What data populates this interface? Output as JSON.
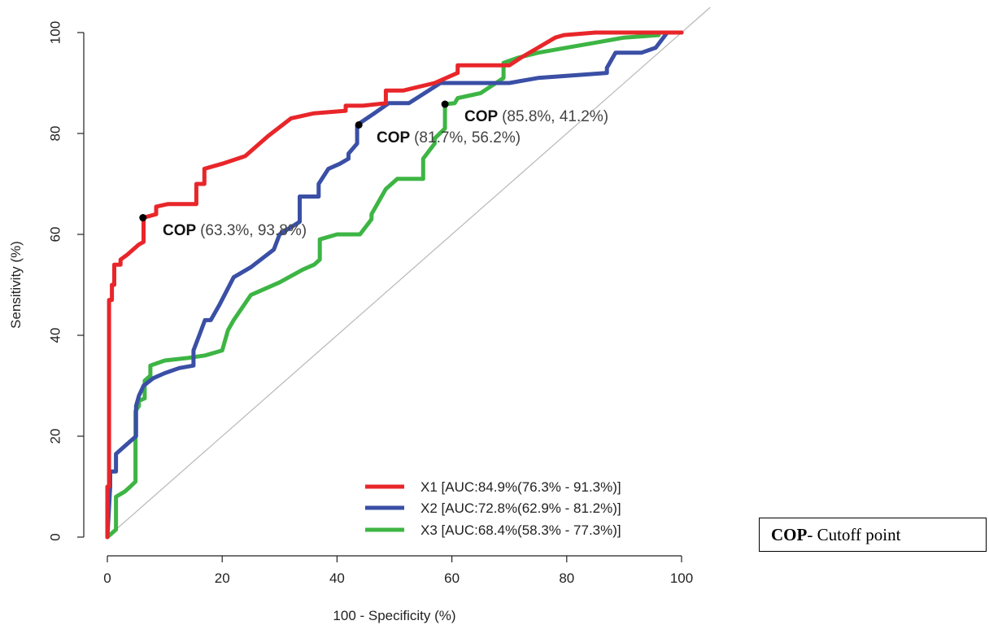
{
  "chart_data": {
    "type": "line",
    "title": "",
    "xlabel": "100 - Specificity (%)",
    "ylabel": "Sensitivity (%)",
    "xlim": [
      0,
      100
    ],
    "ylim": [
      0,
      100
    ],
    "xticks": [
      0,
      20,
      40,
      60,
      80,
      100
    ],
    "yticks": [
      0,
      20,
      40,
      60,
      80,
      100
    ],
    "grid": false,
    "reference_line": "diagonal",
    "legend_position": "bottom-right",
    "series": [
      {
        "name": "X1 [AUC:84.9%(76.3% - 91.3%)]",
        "color": "#e8262a",
        "x": [
          0,
          0,
          0.3,
          0.3,
          0.8,
          0.8,
          1.2,
          1.2,
          2.3,
          2.3,
          3.5,
          5.5,
          6.3,
          6.3,
          8.5,
          8.5,
          10.5,
          15.5,
          15.5,
          16.9,
          16.9,
          20,
          24,
          28,
          32,
          36,
          41.5,
          41.5,
          44.5,
          48.5,
          48.5,
          51.5,
          57,
          61,
          61,
          67,
          70,
          72,
          75,
          78,
          79.5,
          85,
          93,
          100
        ],
        "y": [
          0,
          10,
          10,
          47,
          47,
          50,
          50,
          54,
          54,
          55,
          56,
          58,
          58.5,
          63.3,
          64,
          65.5,
          66,
          66,
          70,
          70,
          73,
          74,
          75.5,
          79.5,
          83,
          84,
          84.5,
          85.5,
          85.5,
          86,
          88.5,
          88.5,
          90,
          92,
          93.5,
          93.5,
          93.5,
          95,
          97,
          99,
          99.5,
          100,
          100,
          100
        ]
      },
      {
        "name": "X2 [AUC:72.8%(62.9% - 81.2%)]",
        "color": "#3a4fa5",
        "x": [
          0,
          0.5,
          0.5,
          1.5,
          1.5,
          3,
          5,
          5,
          5.5,
          6.3,
          8,
          10,
          12.5,
          15,
          15,
          16,
          17,
          18,
          19.5,
          22,
          25,
          29,
          30,
          33.5,
          33.5,
          36.8,
          36.8,
          38.5,
          40.5,
          42,
          42,
          43.5,
          43.5,
          46.5,
          49,
          52.5,
          58,
          62,
          70,
          75,
          87,
          87,
          88.5,
          93,
          95.5,
          97.5,
          100
        ],
        "y": [
          0,
          10,
          13,
          13,
          16.5,
          18,
          20,
          26,
          28,
          30,
          31.5,
          32.5,
          33.5,
          34,
          37,
          40,
          43,
          43,
          46,
          51.5,
          53.5,
          57,
          60,
          62.5,
          67.5,
          67.5,
          70,
          73,
          74,
          75,
          76,
          78,
          81.7,
          84,
          86,
          86,
          90,
          90,
          90,
          91,
          92,
          93,
          96,
          96,
          97,
          100,
          100
        ]
      },
      {
        "name": "X3 [AUC:68.4%(58.3% - 77.3%)]",
        "color": "#3db544",
        "x": [
          0,
          1.5,
          1.5,
          3,
          4,
          4.9,
          4.9,
          5.5,
          5.5,
          6.5,
          6.5,
          7.5,
          7.5,
          10,
          14,
          17,
          20,
          21,
          22,
          25,
          30,
          34,
          36,
          37,
          37,
          40,
          44,
          46,
          46,
          48.5,
          50.5,
          55,
          55,
          57,
          57,
          58.8,
          58.8,
          60.5,
          61,
          63,
          65,
          69,
          69,
          71.5,
          75,
          80,
          85,
          90,
          96,
          96,
          100
        ],
        "y": [
          0,
          1.5,
          8,
          9,
          10,
          11,
          25,
          26,
          27,
          27.5,
          31,
          32,
          34,
          35,
          35.5,
          36,
          37,
          41,
          43,
          48,
          50.5,
          53,
          54,
          55,
          59,
          60,
          60,
          63,
          64,
          69,
          71,
          71,
          75,
          78,
          79,
          81,
          85.8,
          86,
          87,
          87.5,
          88,
          91,
          94,
          95,
          96,
          97,
          98,
          99,
          99.5,
          100,
          100
        ]
      }
    ],
    "cutoff_points": [
      {
        "label": "COP",
        "value_text": "(63.3%, 93.8%)",
        "x": 6.2,
        "y": 63.3
      },
      {
        "label": "COP",
        "value_text": "(81.7%, 56.2%)",
        "x": 43.8,
        "y": 81.7
      },
      {
        "label": "COP",
        "value_text": "(85.8%, 41.2%)",
        "x": 58.8,
        "y": 85.8
      }
    ]
  },
  "note": {
    "bold": "COP",
    "text": "- Cutoff point"
  }
}
